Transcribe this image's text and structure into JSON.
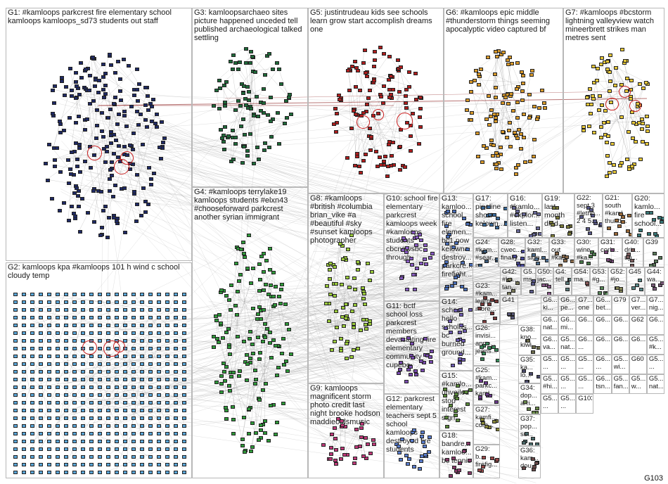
{
  "diagram": {
    "groups": [
      {
        "id": "G1",
        "label": "G1: #kamloops parkcrest fire elementary school kamloops kamloops_sd73 students out staff",
        "color": "#1f2a66",
        "layout": "oval"
      },
      {
        "id": "G2",
        "label": "G2: kamloops kpa #kamloops 101 h wind c school cloudy temp",
        "color": "#5aa6d8",
        "layout": "grid"
      },
      {
        "id": "G3",
        "label": "G3: kamloopsarchaeo sites picture happened unceded tell published archaeological talked settling",
        "color": "#1f6b3a",
        "layout": "oval"
      },
      {
        "id": "G4",
        "label": "G4: #kamloops terrylake19 kamloops students #elxn43 #chooseforward parkcrest another syrian immigrant",
        "color": "#2f9a3a",
        "layout": "oval"
      },
      {
        "id": "G5",
        "label": "G5: justintrudeau kids see schools learn grow start accomplish dreams one",
        "color": "#b01e1e",
        "layout": "oval"
      },
      {
        "id": "G6",
        "label": "G6: #kamloops epic middle #thunderstorm things seeming apocalyptic video captured bf",
        "color": "#d99a2b",
        "layout": "oval"
      },
      {
        "id": "G7",
        "label": "G7: #kamloops #bcstorm lightning valleyview watch mineerbrett strikes man metres sent",
        "color": "#e8c93a",
        "layout": "oval"
      },
      {
        "id": "G8",
        "label": "G8: #kamloops #british #columbia brian_vike #a #beautiful #sky #sunset kamloops photographer",
        "color": "#9bcc3c",
        "layout": "oval"
      },
      {
        "id": "G9",
        "label": "G9: kamloops magnificent storm photo credit last night brooke hodson maddieoldsmusic",
        "color": "#c0397a",
        "layout": "oval"
      },
      {
        "id": "G10",
        "label": "G10: school fire elementary parkcrest kamloops week #kamloops students cbcnewsbc through",
        "color": "#8a5cc4",
        "layout": "oval"
      },
      {
        "id": "G11",
        "label": "G11: bctf school loss parkcrest members devastating fire elementary community cupebc",
        "color": "#7a4cb0",
        "layout": "oval"
      },
      {
        "id": "G12",
        "label": "G12: parkcrest elementary teachers sept 5 school kamloops destroyed fire students",
        "color": "#5b7fd0",
        "layout": "oval"
      },
      {
        "id": "G13",
        "label": "G13: kamloo... school fire elemen... bc1 now kelowna destroy... parkcre... firefight...",
        "color": "#4c6fb8",
        "layout": "cluster"
      },
      {
        "id": "G14",
        "label": "G14: school hello scholas... bc burned ground...",
        "color": "#6d5bb0",
        "layout": "cluster"
      },
      {
        "id": "G15",
        "label": "G15: #kamlo... unveiled stop interest sign...",
        "color": "#5a8a3a",
        "layout": "cluster"
      },
      {
        "id": "G16",
        "label": "G16: #kamlo... #explor... listen...",
        "color": "#6a6a9a",
        "layout": "cluster"
      },
      {
        "id": "G17",
        "label": "G17: pipeline show kelown...",
        "color": "#3a6a9a",
        "layout": "cluster"
      },
      {
        "id": "G18",
        "label": "G18: bandre... kamloo... bc tennis",
        "color": "#8a3a6a",
        "layout": "cluster"
      },
      {
        "id": "G19",
        "label": "G19: last month died...",
        "color": "#7a7a3a",
        "layout": "cluster"
      },
      {
        "id": "G20",
        "label": "G20: kamlo... fire school...",
        "color": "#3a7a7a",
        "layout": "cluster"
      },
      {
        "id": "G21",
        "label": "G21: south #kaml... thund...",
        "color": "#9a6a3a",
        "layout": "cluster"
      },
      {
        "id": "G22",
        "label": "G22: sept 3 #lethb... 2 4 5...",
        "color": "#5a5a8a",
        "layout": "cluster"
      },
      {
        "id": "G23",
        "label": "G23: #kam... learn more...",
        "color": "#7a3a3a",
        "layout": "cluster"
      },
      {
        "id": "G24",
        "label": "G24: #kam... #sear... is...",
        "color": "#3a5a7a",
        "layout": "cluster"
      },
      {
        "id": "G25",
        "label": "G25: #kam... parkc... kaml...",
        "color": "#6a3a8a",
        "layout": "cluster"
      },
      {
        "id": "G26",
        "label": "G26: invisi... anne... jeans...",
        "color": "#3a8a5a",
        "layout": "cluster"
      },
      {
        "id": "G27",
        "label": "G27: kamfi... com...",
        "color": "#8a8a3a",
        "layout": "cluster"
      },
      {
        "id": "G28",
        "label": "G28: cwec... finally...",
        "color": "#4a4a9a",
        "layout": "cluster"
      },
      {
        "id": "G29",
        "label": "G29: b... firefig...",
        "color": "#9a4a4a",
        "layout": "cluster"
      },
      {
        "id": "G30",
        "label": "G30: wine #ka...",
        "color": "#4a7a4a",
        "layout": "cluster"
      },
      {
        "id": "G31",
        "label": "G31: cork...",
        "color": "#7a4a7a",
        "layout": "cluster"
      },
      {
        "id": "G32",
        "label": "G32: kaml... sign...",
        "color": "#4a6a8a",
        "layout": "cluster"
      },
      {
        "id": "G33",
        "label": "G33: out #ka...",
        "color": "#8a6a4a",
        "layout": "cluster"
      },
      {
        "id": "G34",
        "label": "G34: dop... arri...",
        "color": "#6a8a4a",
        "layout": "cluster"
      },
      {
        "id": "G35",
        "label": "G35: ka... lo...",
        "color": "#4a4a6a",
        "layout": "cluster"
      },
      {
        "id": "G36",
        "label": "G36: kam... dou...",
        "color": "#6a4a4a",
        "layout": "cluster"
      },
      {
        "id": "G37",
        "label": "G37: pop... su...",
        "color": "#4a6a6a",
        "layout": "cluster"
      },
      {
        "id": "G38",
        "label": "G38: kno... kiwi...",
        "color": "#6a6a4a",
        "layout": "cluster"
      },
      {
        "id": "G39",
        "label": "G39",
        "color": "#5a7a5a",
        "layout": "cluster"
      },
      {
        "id": "G40",
        "label": "G40: driv... up...",
        "color": "#7a5a5a",
        "layout": "cluster"
      },
      {
        "id": "G41",
        "label": "G41",
        "color": "#5a5a7a",
        "layout": "cluster"
      },
      {
        "id": "G42",
        "label": "G42: #ka... tan...",
        "color": "#7a7a5a",
        "layout": "cluster"
      },
      {
        "id": "G43",
        "label": "G4: tell...",
        "color": "#5a7a7a",
        "layout": "cluster"
      },
      {
        "id": "G44",
        "label": "G44: wa...",
        "color": "#7a5a7a",
        "layout": "cluster"
      },
      {
        "id": "G45",
        "label": "G45",
        "color": "#5a8a8a",
        "layout": "cluster"
      },
      {
        "id": "G50",
        "label": "G50: jac...",
        "color": "#8a5a8a",
        "layout": "cluster"
      },
      {
        "id": "G52",
        "label": "G52: #jo...",
        "color": "#8a8a5a",
        "layout": "cluster"
      },
      {
        "id": "G53",
        "label": "G53: #g...",
        "color": "#5a8a5a",
        "layout": "cluster"
      },
      {
        "id": "G54",
        "label": "G54: ma...",
        "color": "#8a5a5a",
        "layout": "cluster"
      },
      {
        "id": "G5x",
        "label": "G5... ms...",
        "color": "#5a5a8a",
        "layout": "cluster"
      }
    ],
    "tiny_labels": [
      "G6... ki...",
      "G6... pe...",
      "G7... one",
      "G6... bet...",
      "G79",
      "G7... ver...",
      "G7... nig...",
      "G6... nat...",
      "G6... mi...",
      "G6...",
      "G6...",
      "G6...",
      "G62",
      "G6...",
      "G6... va...",
      "G5... nat...",
      "G6... ...",
      "G6...",
      "G6...",
      "G6...",
      "G5... #k...",
      "G5... ...",
      "G5... ...",
      "G5... ...",
      "G6... ...",
      "G5... wi...",
      "G60",
      "G5... ...",
      "G5... #hi...",
      "G5... ...",
      "G5... ...",
      "G6... tsn...",
      "G5... fan...",
      "G5... w...",
      "G5... nat...",
      "G5... ...",
      "G5... ...",
      "G103"
    ],
    "footer_label": "G103"
  }
}
